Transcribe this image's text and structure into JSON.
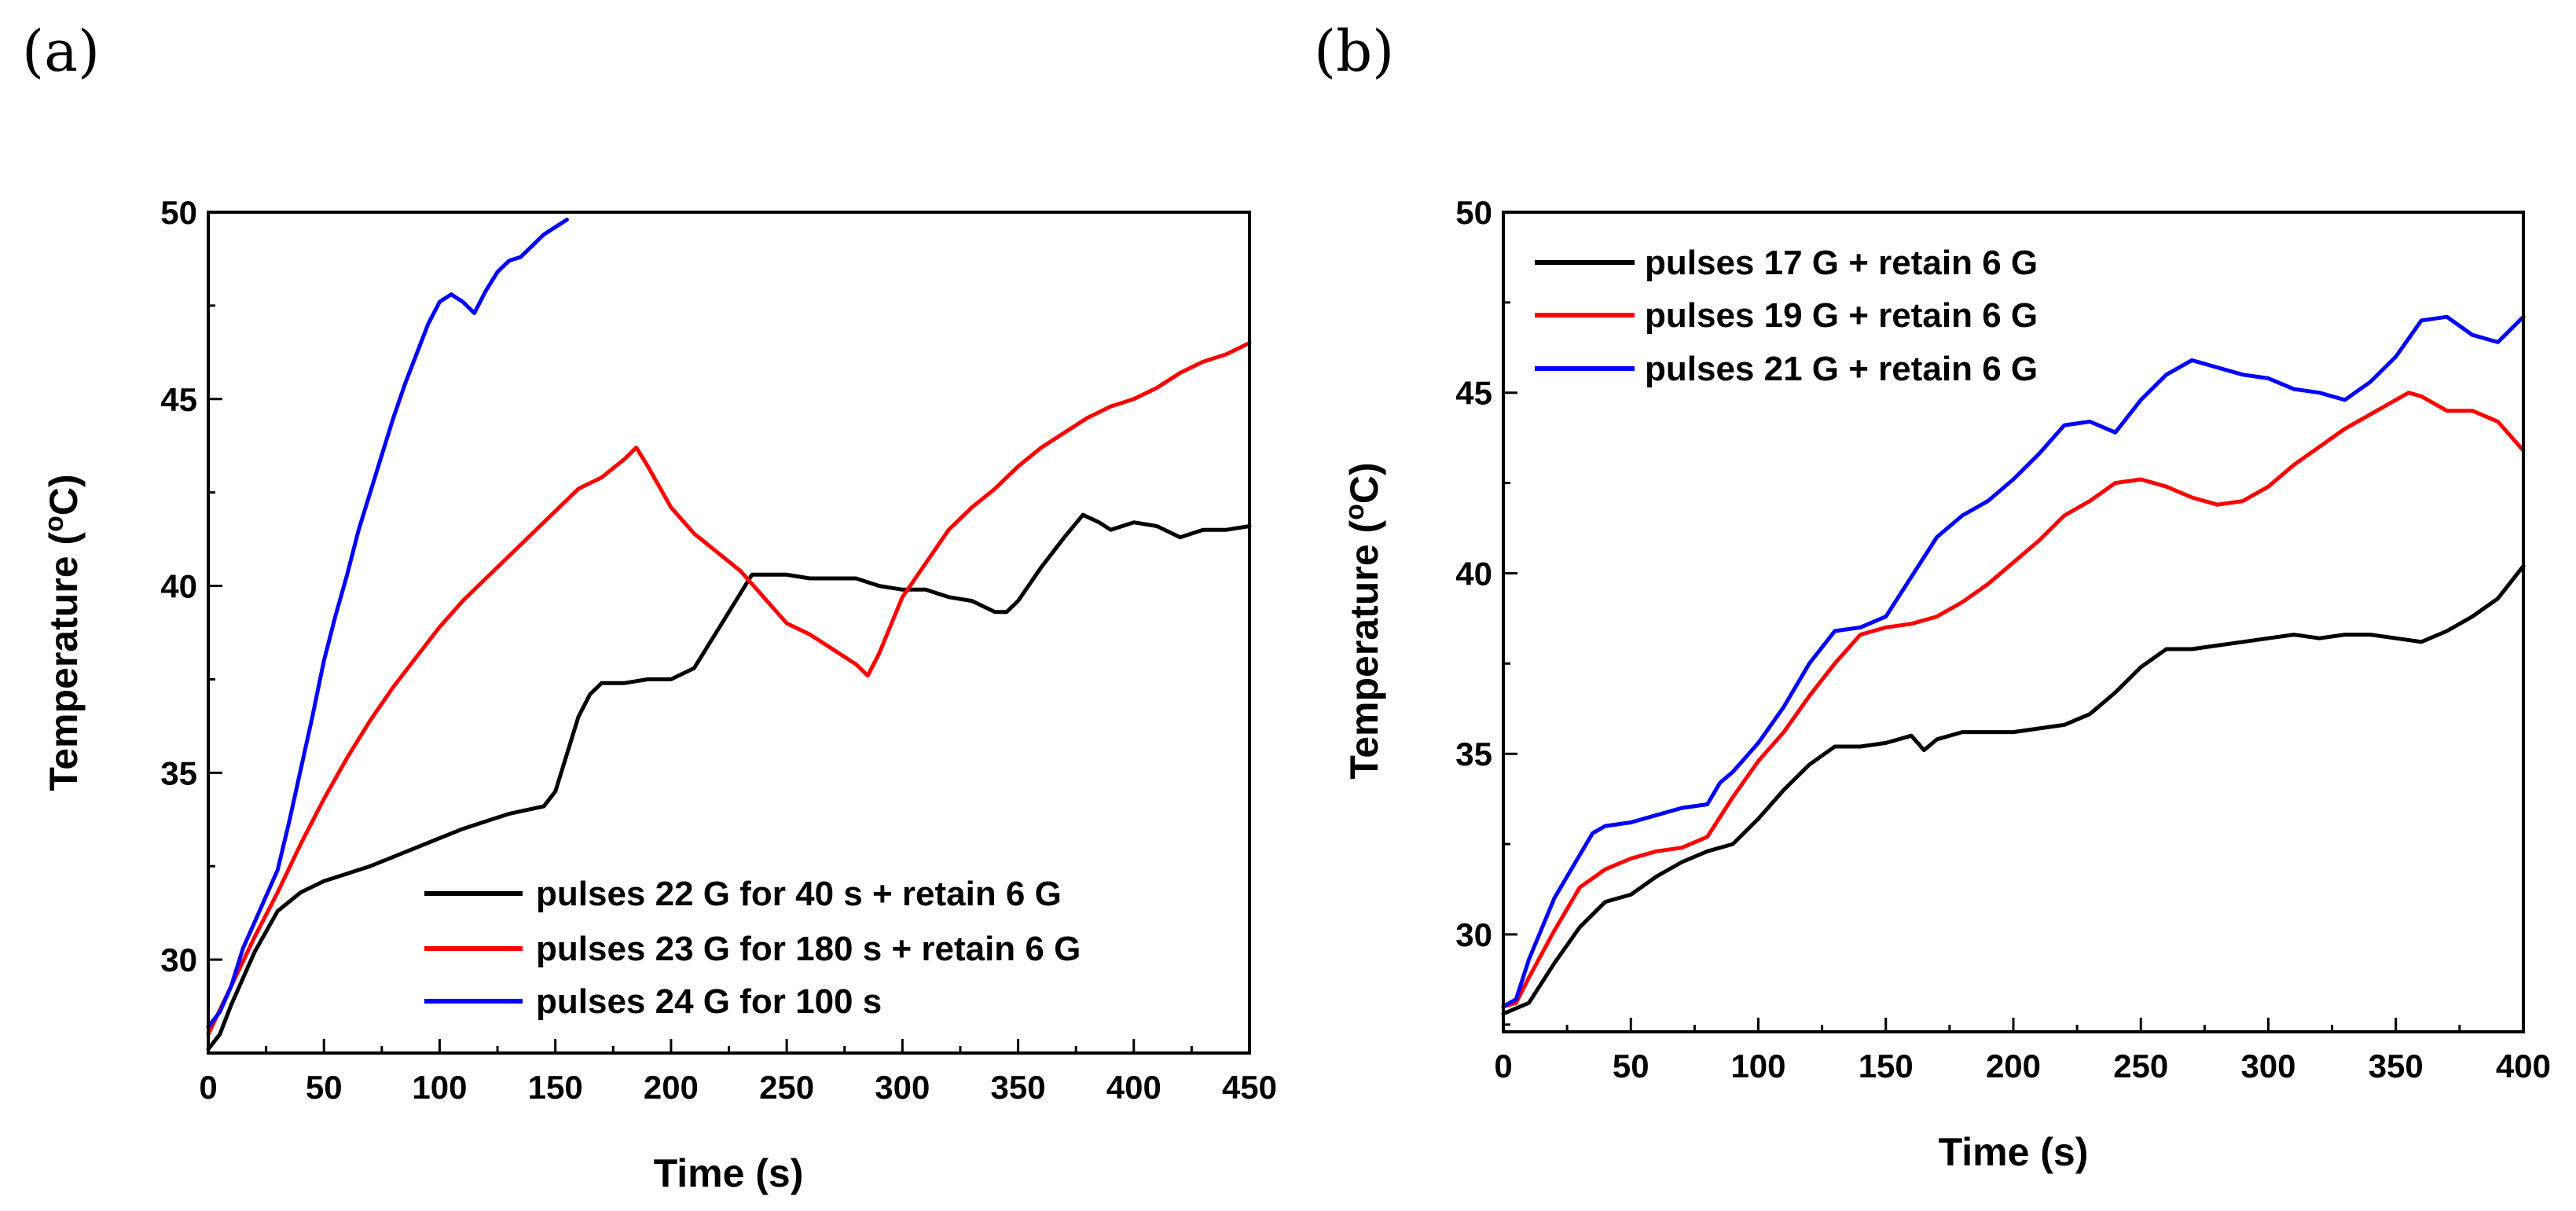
{
  "chart_data": [
    {
      "type": "line",
      "panel_label": "(a)",
      "title": "",
      "xlabel": "Time (s)",
      "ylabel_prefix": "Temperature (",
      "ylabel_sup": "o",
      "ylabel_suffix": "C)",
      "xlim": [
        0,
        450
      ],
      "ylim": [
        27.5,
        50
      ],
      "xticks": [
        0,
        50,
        100,
        150,
        200,
        250,
        300,
        350,
        400,
        450
      ],
      "yticks": [
        30,
        35,
        40,
        45,
        50
      ],
      "legend_position": "bottom-right",
      "series": [
        {
          "name": "pulses 22 G for 40 s + retain 6 G",
          "color": "#000000",
          "x": [
            0,
            5,
            10,
            20,
            30,
            40,
            50,
            70,
            90,
            110,
            130,
            145,
            150,
            155,
            160,
            165,
            170,
            180,
            190,
            200,
            210,
            220,
            230,
            235,
            240,
            250,
            260,
            270,
            280,
            290,
            300,
            310,
            320,
            330,
            340,
            345,
            350,
            360,
            370,
            378,
            385,
            390,
            400,
            410,
            420,
            430,
            440,
            450
          ],
          "y": [
            27.6,
            28.0,
            28.8,
            30.2,
            31.3,
            31.8,
            32.1,
            32.5,
            33.0,
            33.5,
            33.9,
            34.1,
            34.5,
            35.5,
            36.5,
            37.1,
            37.4,
            37.4,
            37.5,
            37.5,
            37.8,
            38.8,
            39.8,
            40.3,
            40.3,
            40.3,
            40.2,
            40.2,
            40.2,
            40.0,
            39.9,
            39.9,
            39.7,
            39.6,
            39.3,
            39.3,
            39.6,
            40.5,
            41.3,
            41.9,
            41.7,
            41.5,
            41.7,
            41.6,
            41.3,
            41.5,
            41.5,
            41.6
          ]
        },
        {
          "name": "pulses 23 G for 180 s + retain 6 G",
          "color": "#ff0000",
          "x": [
            0,
            10,
            20,
            30,
            40,
            50,
            60,
            70,
            80,
            90,
            100,
            110,
            120,
            130,
            140,
            150,
            160,
            170,
            180,
            185,
            190,
            200,
            210,
            220,
            230,
            240,
            250,
            260,
            270,
            280,
            285,
            290,
            300,
            310,
            320,
            330,
            340,
            350,
            360,
            370,
            380,
            390,
            400,
            410,
            420,
            430,
            440,
            450
          ],
          "y": [
            28.0,
            29.3,
            30.6,
            31.8,
            33.1,
            34.3,
            35.4,
            36.4,
            37.3,
            38.1,
            38.9,
            39.6,
            40.2,
            40.8,
            41.4,
            42.0,
            42.6,
            42.9,
            43.4,
            43.7,
            43.2,
            42.1,
            41.4,
            40.9,
            40.4,
            39.7,
            39.0,
            38.7,
            38.3,
            37.9,
            37.6,
            38.2,
            39.7,
            40.6,
            41.5,
            42.1,
            42.6,
            43.2,
            43.7,
            44.1,
            44.5,
            44.8,
            45.0,
            45.3,
            45.7,
            46.0,
            46.2,
            46.5
          ]
        },
        {
          "name": "pulses 24 G for 100 s",
          "color": "#0000ff",
          "x": [
            0,
            5,
            10,
            15,
            20,
            25,
            30,
            35,
            40,
            45,
            50,
            55,
            60,
            65,
            70,
            75,
            80,
            85,
            90,
            95,
            100,
            105,
            110,
            115,
            120,
            125,
            130,
            135,
            140,
            145,
            150,
            155
          ],
          "y": [
            28.2,
            28.6,
            29.3,
            30.3,
            31.0,
            31.7,
            32.4,
            33.7,
            35.1,
            36.5,
            38.0,
            39.2,
            40.3,
            41.5,
            42.5,
            43.5,
            44.5,
            45.4,
            46.2,
            47.0,
            47.6,
            47.8,
            47.6,
            47.3,
            47.9,
            48.4,
            48.7,
            48.8,
            49.1,
            49.4,
            49.6,
            49.8
          ]
        }
      ]
    },
    {
      "type": "line",
      "panel_label": "(b)",
      "title": "",
      "xlabel": "Time (s)",
      "ylabel_prefix": "Temperature (",
      "ylabel_sup": "o",
      "ylabel_suffix": "C)",
      "xlim": [
        0,
        400
      ],
      "ylim": [
        27.3,
        50
      ],
      "xticks": [
        0,
        50,
        100,
        150,
        200,
        250,
        300,
        350,
        400
      ],
      "yticks": [
        30,
        35,
        40,
        45,
        50
      ],
      "legend_position": "top-left",
      "series": [
        {
          "name": "pulses 17 G + retain 6 G",
          "color": "#000000",
          "x": [
            0,
            10,
            20,
            30,
            40,
            50,
            60,
            70,
            80,
            90,
            100,
            110,
            120,
            130,
            140,
            150,
            160,
            165,
            170,
            180,
            190,
            200,
            210,
            220,
            230,
            240,
            250,
            260,
            270,
            280,
            290,
            300,
            310,
            320,
            330,
            340,
            350,
            360,
            370,
            380,
            390,
            400
          ],
          "y": [
            27.8,
            28.1,
            29.2,
            30.2,
            30.9,
            31.1,
            31.6,
            32.0,
            32.3,
            32.5,
            33.2,
            34.0,
            34.7,
            35.2,
            35.2,
            35.3,
            35.5,
            35.1,
            35.4,
            35.6,
            35.6,
            35.6,
            35.7,
            35.8,
            36.1,
            36.7,
            37.4,
            37.9,
            37.9,
            38.0,
            38.1,
            38.2,
            38.3,
            38.2,
            38.3,
            38.3,
            38.2,
            38.1,
            38.4,
            38.8,
            39.3,
            40.2
          ]
        },
        {
          "name": "pulses 19 G + retain 6 G",
          "color": "#ff0000",
          "x": [
            0,
            5,
            10,
            20,
            30,
            40,
            50,
            60,
            70,
            80,
            90,
            100,
            110,
            120,
            130,
            140,
            150,
            160,
            170,
            180,
            190,
            200,
            210,
            220,
            230,
            240,
            250,
            260,
            270,
            280,
            290,
            300,
            310,
            320,
            330,
            340,
            350,
            355,
            360,
            370,
            380,
            390,
            400
          ],
          "y": [
            28.0,
            28.1,
            28.8,
            30.1,
            31.3,
            31.8,
            32.1,
            32.3,
            32.4,
            32.7,
            33.8,
            34.8,
            35.6,
            36.6,
            37.5,
            38.3,
            38.5,
            38.6,
            38.8,
            39.2,
            39.7,
            40.3,
            40.9,
            41.6,
            42.0,
            42.5,
            42.6,
            42.4,
            42.1,
            41.9,
            42.0,
            42.4,
            43.0,
            43.5,
            44.0,
            44.4,
            44.8,
            45.0,
            44.9,
            44.5,
            44.5,
            44.2,
            43.4
          ]
        },
        {
          "name": "pulses 21 G + retain 6 G",
          "color": "#0000ff",
          "x": [
            0,
            5,
            10,
            20,
            30,
            35,
            40,
            50,
            60,
            70,
            80,
            85,
            90,
            100,
            110,
            120,
            130,
            140,
            150,
            160,
            170,
            180,
            190,
            200,
            210,
            220,
            230,
            240,
            250,
            260,
            270,
            280,
            290,
            300,
            310,
            320,
            330,
            340,
            350,
            360,
            370,
            380,
            390,
            400
          ],
          "y": [
            28.0,
            28.2,
            29.3,
            31.0,
            32.2,
            32.8,
            33.0,
            33.1,
            33.3,
            33.5,
            33.6,
            34.2,
            34.5,
            35.3,
            36.3,
            37.5,
            38.4,
            38.5,
            38.8,
            39.9,
            41.0,
            41.6,
            42.0,
            42.6,
            43.3,
            44.1,
            44.2,
            43.9,
            44.8,
            45.5,
            45.9,
            45.7,
            45.5,
            45.4,
            45.1,
            45.0,
            44.8,
            45.3,
            46.0,
            47.0,
            47.1,
            46.6,
            46.4,
            47.1
          ]
        }
      ]
    }
  ]
}
